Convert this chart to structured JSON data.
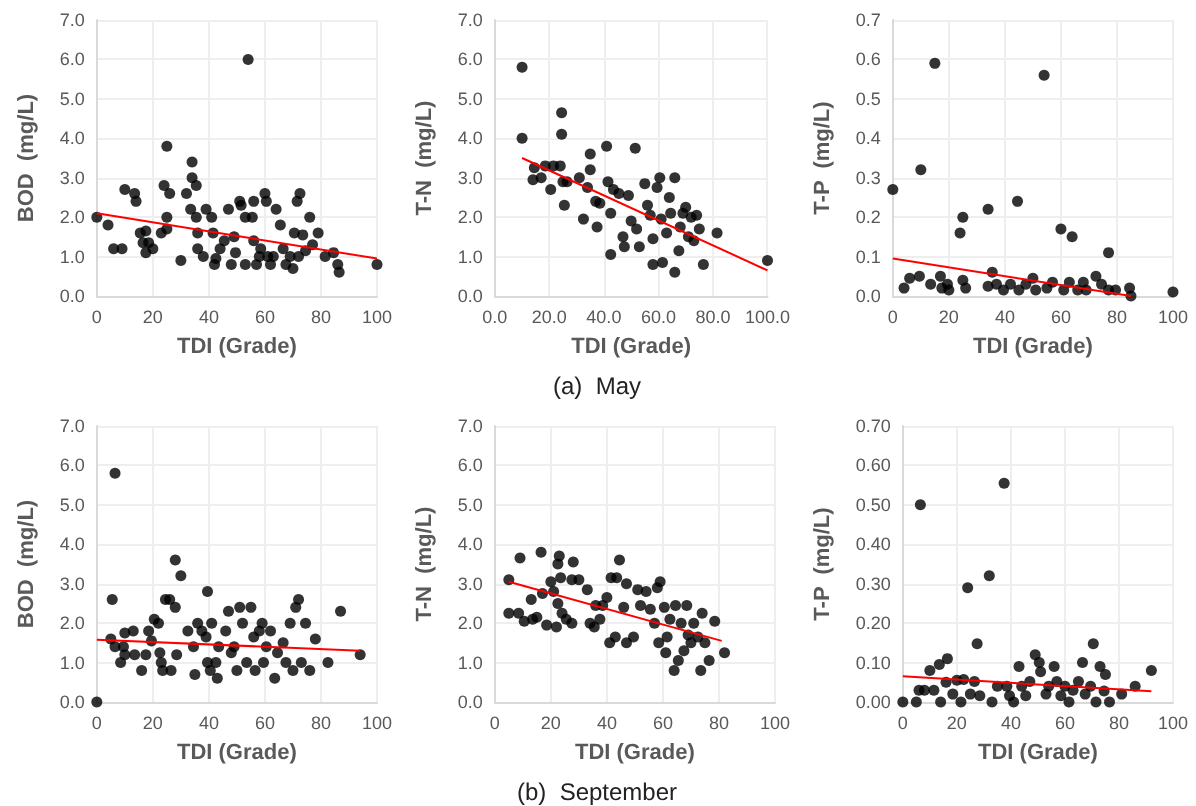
{
  "chart_data": [
    {
      "type": "scatter",
      "xlabel": "TDI (Grade)",
      "ylabel": "BOD  (mg/L)",
      "xlim": [
        0,
        100
      ],
      "ylim": [
        0,
        7
      ],
      "xticks": [
        0,
        20,
        40,
        60,
        80,
        100
      ],
      "yticks": [
        {
          "value": 0,
          "label": "0.0"
        },
        {
          "value": 1,
          "label": "1.0"
        },
        {
          "value": 2,
          "label": "2.0"
        },
        {
          "value": 3,
          "label": "3.0"
        },
        {
          "value": 4,
          "label": "4.0"
        },
        {
          "value": 5,
          "label": "5.0"
        },
        {
          "value": 6,
          "label": "6.0"
        },
        {
          "value": 7,
          "label": "7.0"
        }
      ],
      "grid": true,
      "marker": "circle",
      "series": [
        {
          "color": "#000000",
          "x": [
            0,
            4,
            6,
            9,
            10,
            13.5,
            14,
            15.5,
            16.5,
            17.5,
            17.5,
            18.5,
            20,
            23,
            24,
            25,
            25,
            26,
            25,
            30,
            32,
            34,
            34,
            35.5,
            33.5,
            35.5,
            36,
            36,
            38,
            39,
            41,
            41.5,
            42.5,
            42,
            44,
            45.5,
            47,
            48,
            49,
            49.5,
            51,
            51.5,
            53,
            54,
            53,
            55.5,
            56,
            56,
            57,
            58.5,
            60,
            60.5,
            61,
            62,
            64,
            65.5,
            66.5,
            67.5,
            69,
            70.5,
            71.5,
            72.5,
            73.5,
            74.5,
            76,
            77,
            79,
            81.5,
            84.5,
            86,
            86.5,
            100,
            58,
            63,
            70,
            72
          ],
          "values": [
            2.0,
            1.8,
            1.2,
            1.2,
            2.7,
            2.6,
            2.4,
            1.6,
            1.35,
            1.65,
            1.1,
            1.35,
            1.2,
            1.6,
            2.8,
            2.0,
            3.8,
            2.6,
            1.7,
            0.9,
            2.6,
            3.4,
            3.0,
            2.8,
            2.2,
            2.0,
            1.6,
            1.2,
            1.0,
            2.2,
            2.0,
            1.6,
            0.95,
            0.8,
            1.2,
            1.4,
            2.2,
            0.8,
            1.5,
            1.1,
            2.4,
            2.3,
            0.8,
            6.0,
            2.0,
            2.0,
            2.4,
            1.4,
            0.8,
            1.2,
            2.6,
            2.4,
            1.0,
            0.8,
            2.2,
            1.8,
            1.2,
            0.8,
            1.0,
            1.6,
            2.4,
            2.6,
            1.55,
            1.15,
            2.0,
            1.3,
            1.6,
            1.0,
            1.1,
            0.8,
            0.6,
            0.8,
            1.0,
            1.0,
            0.7,
            1.0
          ]
        },
        {
          "type": "line",
          "color": "#ff0000",
          "marker": "none",
          "line_style": "solid",
          "x": [
            0,
            100
          ],
          "values": [
            2.1,
            0.95
          ]
        }
      ]
    },
    {
      "type": "scatter",
      "xlabel": "TDI (Grade)",
      "ylabel": "T-N  (mg/L)",
      "annotations": [
        "(a)  May"
      ],
      "xlim": [
        0,
        100
      ],
      "ylim": [
        0,
        7
      ],
      "xticks": [
        {
          "value": 0,
          "label": "0.0"
        },
        {
          "value": 20,
          "label": "20.0"
        },
        {
          "value": 40,
          "label": "40.0"
        },
        {
          "value": 60,
          "label": "60.0"
        },
        {
          "value": 80,
          "label": "80.0"
        },
        {
          "value": 100,
          "label": "100.0"
        }
      ],
      "yticks": [
        {
          "value": 0,
          "label": "0.0"
        },
        {
          "value": 1,
          "label": "1.0"
        },
        {
          "value": 2,
          "label": "2.0"
        },
        {
          "value": 3,
          "label": "3.0"
        },
        {
          "value": 4,
          "label": "4.0"
        },
        {
          "value": 5,
          "label": "5.0"
        },
        {
          "value": 6,
          "label": "6.0"
        },
        {
          "value": 7,
          "label": "7.0"
        }
      ],
      "grid": true,
      "marker": "circle",
      "series": [
        {
          "color": "#000000",
          "x": [
            10,
            10,
            14.5,
            14,
            17,
            18.5,
            20.5,
            21.5,
            24,
            24.5,
            24.5,
            25,
            25.5,
            26.5,
            31,
            32.5,
            35,
            35,
            34,
            37,
            37.5,
            38.5,
            41,
            41.5,
            42.5,
            42.5,
            43.5,
            45.5,
            47.5,
            47,
            49,
            50,
            51.5,
            52,
            53,
            55,
            56,
            57,
            58,
            58,
            59.5,
            60.5,
            61,
            61.5,
            63,
            64,
            64.5,
            66,
            66,
            67.5,
            68,
            69,
            70,
            71,
            72,
            73,
            74,
            75,
            76.5,
            81.5,
            100
          ],
          "values": [
            5.8,
            4.0,
            3.25,
            2.95,
            3.0,
            3.3,
            2.7,
            3.3,
            3.3,
            4.65,
            4.1,
            2.9,
            2.3,
            2.9,
            3.0,
            1.95,
            3.6,
            3.2,
            2.75,
            2.4,
            1.75,
            2.35,
            3.8,
            2.9,
            2.1,
            1.05,
            2.7,
            2.6,
            1.25,
            1.5,
            2.55,
            1.9,
            3.75,
            1.7,
            1.25,
            2.85,
            2.3,
            2.05,
            0.8,
            1.45,
            2.75,
            3.0,
            1.95,
            0.85,
            1.6,
            2.5,
            2.1,
            3.0,
            0.6,
            1.15,
            1.75,
            2.1,
            2.25,
            1.5,
            2.0,
            1.4,
            2.05,
            1.7,
            0.8,
            1.6,
            0.9
          ]
        },
        {
          "type": "line",
          "color": "#ff0000",
          "marker": "none",
          "line_style": "solid",
          "x": [
            10,
            100
          ],
          "values": [
            3.5,
            0.65
          ]
        }
      ]
    },
    {
      "type": "scatter",
      "xlabel": "TDI (Grade)",
      "ylabel": "T-P  (mg/L)",
      "xlim": [
        0,
        100
      ],
      "ylim": [
        0,
        0.7
      ],
      "xticks": [
        0,
        20,
        40,
        60,
        80,
        100
      ],
      "yticks": [
        {
          "value": 0,
          "label": "0.0"
        },
        0.1,
        0.2,
        0.3,
        0.4,
        0.5,
        0.6,
        0.7
      ],
      "grid": true,
      "marker": "circle",
      "series": [
        {
          "color": "#000000",
          "x": [
            0,
            4,
            6,
            9.5,
            10,
            13.5,
            15,
            17,
            17.5,
            19.5,
            20,
            24,
            25,
            25,
            26,
            34,
            35.5,
            34,
            37,
            39.5,
            42,
            44.5,
            45,
            47.5,
            50,
            51,
            54,
            55,
            57,
            60,
            61,
            63,
            64,
            66,
            68,
            69,
            72.5,
            74.5,
            77,
            77,
            79.5,
            82.5,
            84.5,
            85,
            100
          ],
          "values": [
            0.27,
            0.02,
            0.045,
            0.05,
            0.32,
            0.03,
            0.59,
            0.05,
            0.02,
            0.03,
            0.015,
            0.16,
            0.2,
            0.04,
            0.02,
            0.22,
            0.06,
            0.025,
            0.03,
            0.015,
            0.03,
            0.24,
            0.015,
            0.03,
            0.045,
            0.015,
            0.56,
            0.02,
            0.035,
            0.17,
            0.015,
            0.035,
            0.15,
            0.015,
            0.035,
            0.015,
            0.05,
            0.03,
            0.11,
            0.015,
            0.015,
            null,
            0.02,
            0.0,
            0.01
          ]
        },
        {
          "type": "line",
          "color": "#ff0000",
          "marker": "none",
          "line_style": "solid",
          "x": [
            0,
            85
          ],
          "values": [
            0.095,
            0.0
          ]
        }
      ]
    },
    {
      "type": "scatter",
      "xlabel": "TDI (Grade)",
      "ylabel": "BOD  (mg/L)",
      "xlim": [
        0,
        100
      ],
      "ylim": [
        0,
        7
      ],
      "xticks": [
        0,
        20,
        40,
        60,
        80,
        100
      ],
      "yticks": [
        {
          "value": 0,
          "label": "0.0"
        },
        {
          "value": 1,
          "label": "1.0"
        },
        {
          "value": 2,
          "label": "2.0"
        },
        {
          "value": 3,
          "label": "3.0"
        },
        {
          "value": 4,
          "label": "4.0"
        },
        {
          "value": 5,
          "label": "5.0"
        },
        {
          "value": 6,
          "label": "6.0"
        },
        {
          "value": 7,
          "label": "7.0"
        }
      ],
      "grid": true,
      "marker": "circle",
      "series": [
        {
          "color": "#000000",
          "x": [
            0,
            5.5,
            6.5,
            5,
            6.5,
            8.5,
            9.5,
            10,
            10,
            13,
            13.5,
            16,
            17.5,
            18.5,
            19.5,
            20.5,
            22,
            22.5,
            23,
            23.5,
            24.5,
            26,
            26.5,
            28,
            28,
            30,
            28.5,
            32.5,
            34.5,
            35,
            36,
            37.5,
            39,
            39.5,
            39.5,
            40.5,
            41,
            42.5,
            43,
            43.5,
            46,
            47,
            48,
            49,
            50,
            51,
            52,
            53.5,
            55,
            56,
            56.5,
            58,
            59,
            59.5,
            60.5,
            62,
            63.5,
            64.5,
            66.5,
            67.5,
            69,
            70,
            71,
            72,
            73,
            74.5,
            76,
            78,
            82.5,
            87,
            94
          ],
          "values": [
            0.0,
            2.6,
            5.8,
            1.6,
            1.4,
            1.0,
            1.4,
            1.75,
            1.2,
            1.8,
            1.2,
            0.8,
            1.2,
            1.8,
            1.55,
            2.1,
            2.0,
            1.25,
            1.0,
            0.8,
            2.6,
            2.6,
            0.8,
            3.6,
            2.4,
            3.2,
            1.2,
            1.8,
            1.4,
            0.7,
            2.0,
            1.8,
            1.65,
            2.8,
            1.0,
            0.8,
            2.0,
            1.0,
            0.6,
            1.4,
            1.8,
            2.3,
            1.25,
            1.4,
            0.8,
            2.4,
            2.0,
            1.0,
            2.4,
            1.65,
            0.8,
            1.8,
            2.0,
            1.0,
            1.4,
            1.8,
            0.6,
            1.25,
            1.5,
            1.0,
            2.0,
            0.8,
            2.4,
            2.6,
            1.0,
            2.0,
            0.8,
            1.6,
            1.0,
            2.3,
            1.2
          ]
        },
        {
          "type": "line",
          "color": "#ff0000",
          "marker": "none",
          "line_style": "solid",
          "x": [
            0,
            94
          ],
          "values": [
            1.58,
            1.3
          ]
        }
      ]
    },
    {
      "type": "scatter",
      "xlabel": "TDI (Grade)",
      "ylabel": "T-N  (mg/L)",
      "annotations": [
        "(b)  September"
      ],
      "xlim": [
        0,
        100
      ],
      "ylim": [
        0,
        7
      ],
      "xticks": [
        0,
        20,
        40,
        60,
        80,
        100
      ],
      "yticks": [
        {
          "value": 0,
          "label": "0.0"
        },
        {
          "value": 1,
          "label": "1.0"
        },
        {
          "value": 2,
          "label": "2.0"
        },
        {
          "value": 3,
          "label": "3.0"
        },
        {
          "value": 4,
          "label": "4.0"
        },
        {
          "value": 5,
          "label": "5.0"
        },
        {
          "value": 6,
          "label": "6.0"
        },
        {
          "value": 7,
          "label": "7.0"
        }
      ],
      "grid": true,
      "marker": "circle",
      "series": [
        {
          "color": "#000000",
          "x": [
            5,
            5,
            8.5,
            9,
            10.5,
            13,
            13.5,
            15,
            16.5,
            17,
            18.5,
            20,
            21,
            22,
            22.5,
            23,
            23.5,
            22.5,
            24,
            25.5,
            27.5,
            28,
            30,
            27.5,
            33,
            34,
            35.5,
            36,
            37.5,
            38.5,
            40,
            41,
            41.5,
            43,
            43.5,
            44.5,
            46,
            47,
            47,
            49.5,
            51,
            52,
            54,
            55.5,
            57,
            58,
            58.5,
            59,
            60.5,
            61,
            61.5,
            62.5,
            64,
            64.5,
            65.5,
            66.5,
            67.5,
            68.5,
            69,
            70,
            71,
            72.5,
            73.5,
            74,
            75,
            76.5,
            78.5,
            82
          ],
          "values": [
            3.1,
            2.25,
            2.25,
            3.65,
            2.05,
            2.6,
            2.1,
            2.15,
            3.8,
            2.75,
            1.95,
            3.05,
            2.8,
            1.9,
            3.5,
            3.7,
            3.15,
            2.5,
            2.25,
            2.1,
            3.1,
            3.55,
            3.1,
            2.0,
            2.85,
            2.0,
            1.9,
            2.45,
            2.1,
            2.45,
            2.65,
            1.5,
            3.15,
            1.65,
            3.15,
            3.6,
            2.4,
            3.0,
            1.5,
            1.65,
            2.85,
            2.45,
            2.8,
            2.35,
            2.0,
            2.9,
            1.5,
            3.05,
            2.4,
            1.25,
            1.65,
            2.1,
            0.8,
            2.45,
            1.05,
            2.0,
            1.3,
            2.45,
            1.7,
            1.5,
            2.0,
            1.65,
            0.8,
            2.25,
            1.5,
            1.05,
            2.05,
            1.25
          ]
        },
        {
          "type": "line",
          "color": "#ff0000",
          "marker": "none",
          "line_style": "solid",
          "x": [
            5,
            81
          ],
          "values": [
            3.05,
            1.55
          ]
        }
      ]
    },
    {
      "type": "scatter",
      "xlabel": "TDI (Grade)",
      "ylabel": "T-P  (mg/L)",
      "xlim": [
        0,
        100
      ],
      "ylim": [
        0,
        0.7
      ],
      "xticks": [
        0,
        20,
        40,
        60,
        80,
        100
      ],
      "yticks": [
        {
          "value": 0,
          "label": "0.00"
        },
        {
          "value": 0.1,
          "label": "0.10"
        },
        {
          "value": 0.2,
          "label": "0.20"
        },
        {
          "value": 0.3,
          "label": "0.30"
        },
        {
          "value": 0.4,
          "label": "0.40"
        },
        {
          "value": 0.5,
          "label": "0.50"
        },
        {
          "value": 0.6,
          "label": "0.60"
        },
        {
          "value": 0.7,
          "label": "0.70"
        }
      ],
      "grid": true,
      "marker": "circle",
      "series": [
        {
          "color": "#000000",
          "x": [
            0,
            5,
            6.5,
            6,
            8,
            10,
            11.5,
            13.5,
            14,
            16,
            16.5,
            18.5,
            20,
            21.5,
            22.5,
            24,
            25,
            26.5,
            27.5,
            28.5,
            32,
            33,
            35,
            37.5,
            38.5,
            39.5,
            41,
            43,
            44,
            45.5,
            47,
            49,
            50.5,
            51,
            53,
            54,
            56,
            57,
            58.5,
            60,
            61.5,
            63,
            65,
            66.5,
            67.5,
            69.5,
            70.5,
            71.5,
            73,
            74.5,
            75,
            76.5,
            81,
            86,
            92
          ],
          "values": [
            0.0,
            0.0,
            0.5,
            0.03,
            0.03,
            0.08,
            0.03,
            0.095,
            0.0,
            0.05,
            0.11,
            0.02,
            0.055,
            0.0,
            0.057,
            0.29,
            0.02,
            0.052,
            0.148,
            0.016,
            0.32,
            0.0,
            0.04,
            0.555,
            0.04,
            0.016,
            0.0,
            0.09,
            0.04,
            0.016,
            0.052,
            0.12,
            0.1,
            0.077,
            0.02,
            0.04,
            0.09,
            0.052,
            0.016,
            0.04,
            0.0,
            0.03,
            0.052,
            0.1,
            0.02,
            0.04,
            0.148,
            0.0,
            0.09,
            0.028,
            0.07,
            0.0,
            0.02,
            0.04,
            0.08
          ]
        },
        {
          "type": "line",
          "color": "#ff0000",
          "marker": "none",
          "line_style": "solid",
          "x": [
            0,
            92
          ],
          "values": [
            0.065,
            0.027
          ]
        }
      ]
    }
  ]
}
